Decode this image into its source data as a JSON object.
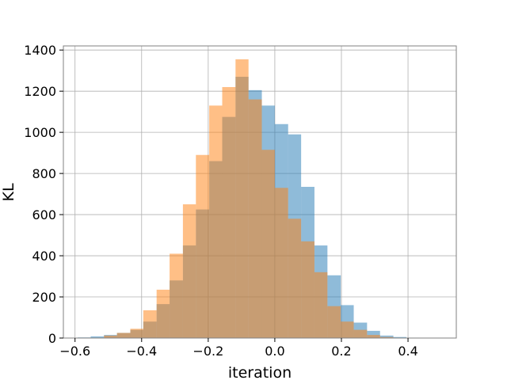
{
  "chart_data": {
    "type": "histogram",
    "title": "",
    "xlabel": "iteration",
    "ylabel": "KL",
    "xlim": [
      -0.635,
      0.545
    ],
    "ylim": [
      0,
      1420
    ],
    "xticks": [
      -0.6,
      -0.4,
      -0.2,
      0.0,
      0.2,
      0.4
    ],
    "xtick_labels": [
      "−0.6",
      "−0.4",
      "−0.2",
      "0.0",
      "0.2",
      "0.4"
    ],
    "yticks": [
      0,
      200,
      400,
      600,
      800,
      1000,
      1200,
      1400
    ],
    "ytick_labels": [
      "0",
      "200",
      "400",
      "600",
      "800",
      "1000",
      "1200",
      "1400"
    ],
    "grid": true,
    "legend": "none",
    "series": [
      {
        "color": "#1f77b4",
        "opacity": 0.5,
        "bins": [
          {
            "x0": -0.592,
            "x1": -0.553,
            "count": 3
          },
          {
            "x0": -0.553,
            "x1": -0.513,
            "count": 8
          },
          {
            "x0": -0.513,
            "x1": -0.474,
            "count": 15
          },
          {
            "x0": -0.474,
            "x1": -0.434,
            "count": 25
          },
          {
            "x0": -0.434,
            "x1": -0.395,
            "count": 40
          },
          {
            "x0": -0.395,
            "x1": -0.355,
            "count": 80
          },
          {
            "x0": -0.355,
            "x1": -0.316,
            "count": 165
          },
          {
            "x0": -0.316,
            "x1": -0.276,
            "count": 280
          },
          {
            "x0": -0.276,
            "x1": -0.237,
            "count": 450
          },
          {
            "x0": -0.237,
            "x1": -0.197,
            "count": 625
          },
          {
            "x0": -0.197,
            "x1": -0.158,
            "count": 860
          },
          {
            "x0": -0.158,
            "x1": -0.118,
            "count": 1075
          },
          {
            "x0": -0.118,
            "x1": -0.079,
            "count": 1270
          },
          {
            "x0": -0.079,
            "x1": -0.039,
            "count": 1205
          },
          {
            "x0": -0.039,
            "x1": 0.0,
            "count": 1130
          },
          {
            "x0": 0.0,
            "x1": 0.04,
            "count": 1040
          },
          {
            "x0": 0.04,
            "x1": 0.079,
            "count": 990
          },
          {
            "x0": 0.079,
            "x1": 0.119,
            "count": 735
          },
          {
            "x0": 0.119,
            "x1": 0.158,
            "count": 450
          },
          {
            "x0": 0.158,
            "x1": 0.198,
            "count": 305
          },
          {
            "x0": 0.198,
            "x1": 0.237,
            "count": 160
          },
          {
            "x0": 0.237,
            "x1": 0.277,
            "count": 75
          },
          {
            "x0": 0.277,
            "x1": 0.316,
            "count": 35
          },
          {
            "x0": 0.316,
            "x1": 0.356,
            "count": 12
          },
          {
            "x0": 0.356,
            "x1": 0.395,
            "count": 5
          },
          {
            "x0": 0.395,
            "x1": 0.435,
            "count": 2
          },
          {
            "x0": 0.435,
            "x1": 0.474,
            "count": 1
          },
          {
            "x0": 0.474,
            "x1": 0.514,
            "count": 1
          }
        ]
      },
      {
        "color": "#ff7f0e",
        "opacity": 0.5,
        "bins": [
          {
            "x0": -0.513,
            "x1": -0.474,
            "count": 12
          },
          {
            "x0": -0.474,
            "x1": -0.434,
            "count": 25
          },
          {
            "x0": -0.434,
            "x1": -0.395,
            "count": 45
          },
          {
            "x0": -0.395,
            "x1": -0.355,
            "count": 135
          },
          {
            "x0": -0.355,
            "x1": -0.316,
            "count": 235
          },
          {
            "x0": -0.316,
            "x1": -0.276,
            "count": 410
          },
          {
            "x0": -0.276,
            "x1": -0.237,
            "count": 650
          },
          {
            "x0": -0.237,
            "x1": -0.197,
            "count": 890
          },
          {
            "x0": -0.197,
            "x1": -0.158,
            "count": 1130
          },
          {
            "x0": -0.158,
            "x1": -0.118,
            "count": 1220
          },
          {
            "x0": -0.118,
            "x1": -0.079,
            "count": 1355
          },
          {
            "x0": -0.079,
            "x1": -0.039,
            "count": 1160
          },
          {
            "x0": -0.039,
            "x1": 0.0,
            "count": 915
          },
          {
            "x0": 0.0,
            "x1": 0.04,
            "count": 730
          },
          {
            "x0": 0.04,
            "x1": 0.079,
            "count": 580
          },
          {
            "x0": 0.079,
            "x1": 0.119,
            "count": 470
          },
          {
            "x0": 0.119,
            "x1": 0.158,
            "count": 320
          },
          {
            "x0": 0.158,
            "x1": 0.198,
            "count": 155
          },
          {
            "x0": 0.198,
            "x1": 0.237,
            "count": 80
          },
          {
            "x0": 0.237,
            "x1": 0.277,
            "count": 40
          },
          {
            "x0": 0.277,
            "x1": 0.316,
            "count": 15
          },
          {
            "x0": 0.316,
            "x1": 0.356,
            "count": 5
          }
        ]
      }
    ]
  }
}
